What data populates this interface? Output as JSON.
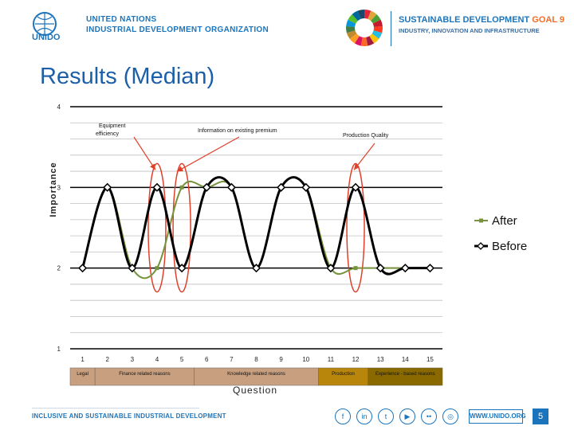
{
  "header": {
    "org_logo": "UNIDO",
    "org_line1": "UNITED NATIONS",
    "org_line2": "INDUSTRIAL DEVELOPMENT ORGANIZATION",
    "sdg_line1": "SUSTAINABLE DEVELOPMENT",
    "sdg_goal": "GOAL 9",
    "sdg_line2": "INDUSTRY, INNOVATION AND INFRASTRUCTURE"
  },
  "title": "Results (Median)",
  "footer": {
    "text": "INCLUSIVE AND SUSTAINABLE INDUSTRIAL DEVELOPMENT",
    "social": [
      "f",
      "in",
      "t",
      "▶",
      "••",
      "◎"
    ],
    "url": "WWW.UNIDO.ORG",
    "page": "5"
  },
  "chart_data": {
    "type": "line",
    "ylabel": "Importance",
    "xlabel": "Question",
    "ylim": [
      1,
      4
    ],
    "yticks": [
      "1",
      "2",
      "3",
      "4"
    ],
    "x": [
      1,
      2,
      3,
      4,
      5,
      6,
      7,
      8,
      9,
      10,
      11,
      12,
      13,
      14,
      15
    ],
    "xticks": [
      "1",
      "2",
      "3",
      "4",
      "5",
      "6",
      "7",
      "8",
      "9",
      "10",
      "11",
      "12",
      "13",
      "14",
      "15"
    ],
    "series": [
      {
        "name": "After",
        "values": [
          2,
          3,
          2,
          2,
          3,
          3,
          3,
          2,
          3,
          3,
          2,
          2,
          2,
          2,
          2
        ],
        "color": "#77933c"
      },
      {
        "name": "Before",
        "values": [
          2,
          3,
          2,
          3,
          2,
          3,
          3,
          2,
          3,
          3,
          2,
          3,
          2,
          2,
          2
        ],
        "color": "#000000"
      }
    ],
    "legend_position": "right",
    "grid": true,
    "categories_groups": [
      {
        "label": "Legal",
        "from": 1,
        "to": 1,
        "color": "#c8a080"
      },
      {
        "label": "Finance related reasons",
        "from": 2,
        "to": 5,
        "color": "#c8a080"
      },
      {
        "label": "Knowledge related reasons",
        "from": 6,
        "to": 10,
        "color": "#c8a080"
      },
      {
        "label": "Production",
        "from": 11,
        "to": 12,
        "color": "#b8860b"
      },
      {
        "label": "Experience - based reasons",
        "from": 13,
        "to": 15,
        "color": "#8a6a00"
      }
    ],
    "annotations": [
      {
        "text": "Equipment efficiency",
        "target_x": 4
      },
      {
        "text": "Information on existing premium",
        "target_x": 5
      },
      {
        "text": "Production Quality",
        "target_x": 12
      }
    ],
    "highlighted_x": [
      4,
      5,
      12
    ]
  }
}
